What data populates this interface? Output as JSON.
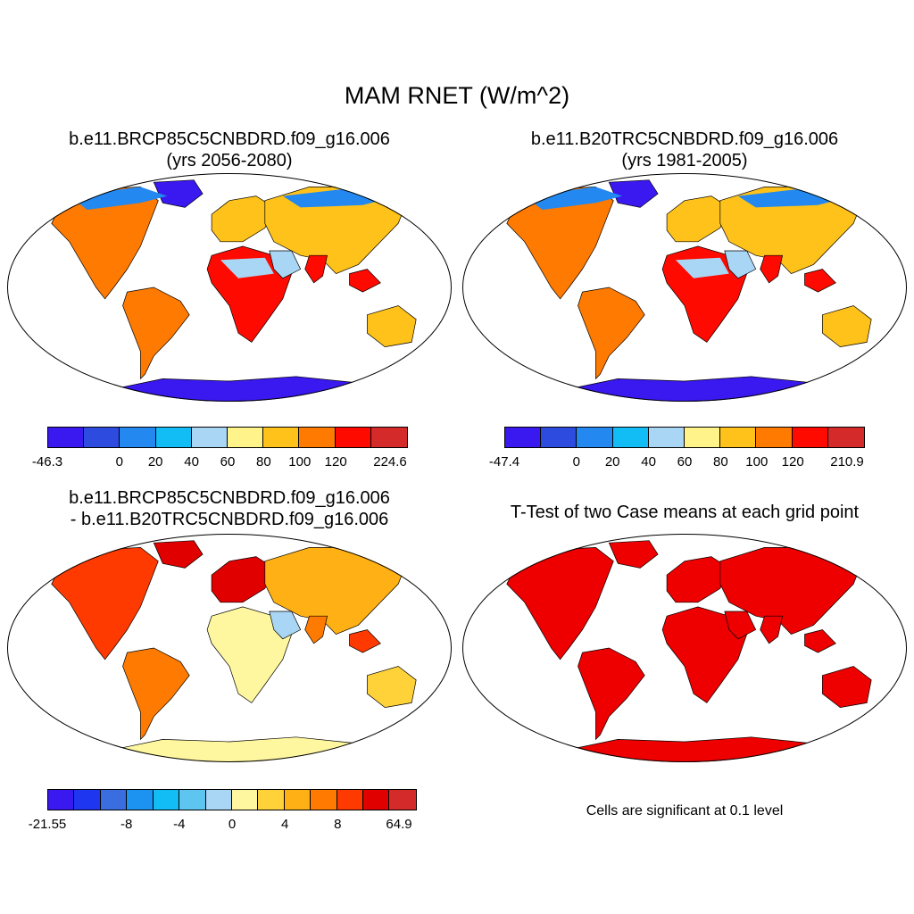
{
  "title": "MAM RNET (W/m^2)",
  "panels": [
    {
      "title_line1": "b.e11.BRCP85C5CNBDRD.f09_g16.006",
      "title_line2": "(yrs 2056-2080)",
      "colorbar": {
        "colors": [
          "#3a18f0",
          "#2e4be0",
          "#2388f0",
          "#12bcf5",
          "#a9d6f5",
          "#fff38a",
          "#ffc21a",
          "#ff7a00",
          "#ff0a00",
          "#d42a2a"
        ],
        "labels": [
          "-46.3",
          "0",
          "20",
          "40",
          "60",
          "80",
          "100",
          "120",
          "224.6"
        ]
      }
    },
    {
      "title_line1": "b.e11.B20TRC5CNBDRD.f09_g16.006",
      "title_line2": "(yrs 1981-2005)",
      "colorbar": {
        "colors": [
          "#3a18f0",
          "#2e4be0",
          "#2388f0",
          "#12bcf5",
          "#a9d6f5",
          "#fff38a",
          "#ffc21a",
          "#ff7a00",
          "#ff0a00",
          "#d42a2a"
        ],
        "labels": [
          "-47.4",
          "0",
          "20",
          "40",
          "60",
          "80",
          "100",
          "120",
          "210.9"
        ]
      }
    },
    {
      "title_line1": "b.e11.BRCP85C5CNBDRD.f09_g16.006",
      "title_line2": "- b.e11.B20TRC5CNBDRD.f09_g16.006",
      "colorbar": {
        "colors": [
          "#3a18f0",
          "#1f36f0",
          "#3a6ee0",
          "#1c93f0",
          "#12bcf5",
          "#5ec4f0",
          "#a9d6f5",
          "#fff7a0",
          "#ffd23a",
          "#ffb014",
          "#ff7a00",
          "#ff3a00",
          "#e00000",
          "#d42a2a"
        ],
        "labels": [
          "-21.55",
          "-8",
          "-4",
          "0",
          "4",
          "8",
          "64.9"
        ]
      }
    },
    {
      "title_line1": "T-Test of two Case means at each grid point",
      "note": "Cells are significant at 0.1 level",
      "significant_color": "#ee0000"
    }
  ]
}
